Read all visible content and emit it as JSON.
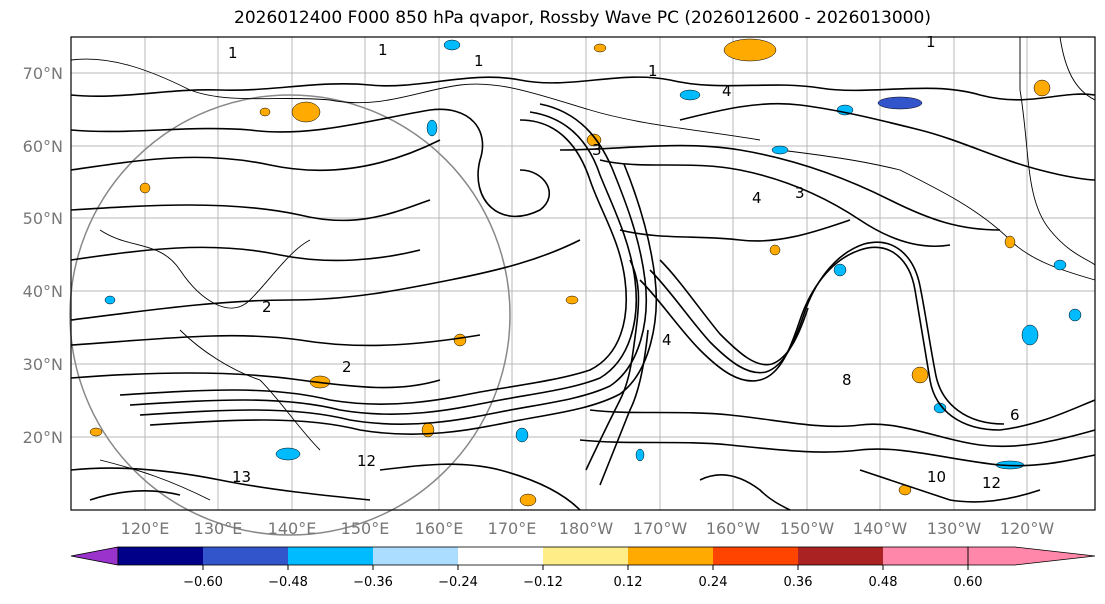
{
  "title": "2026012400 F000 850 hPa qvapor, Rossby Wave PC (2026012600 - 2026013000)",
  "latitude_labels": [
    "70°N",
    "60°N",
    "50°N",
    "40°N",
    "30°N",
    "20°N"
  ],
  "longitude_labels": [
    "120°E",
    "130°E",
    "140°E",
    "150°E",
    "160°E",
    "170°E",
    "180°W",
    "170°W",
    "160°W",
    "150°W",
    "140°W",
    "130°W",
    "120°W"
  ],
  "colorbar": {
    "colors": [
      "#9933cc",
      "#000088",
      "#3355cc",
      "#00bbff",
      "#aaddff",
      "#ffffff",
      "#ffee88",
      "#ffaa00",
      "#ff4400",
      "#aa2222",
      "#ff88aa"
    ],
    "tick_labels": [
      "−0.60",
      "−0.48",
      "−0.36",
      "−0.24",
      "−0.12",
      "0.12",
      "0.24",
      "0.36",
      "0.48",
      "0.60"
    ]
  },
  "contour_labels": [
    "1",
    "1",
    "1",
    "1",
    "1",
    "2",
    "2",
    "4",
    "4",
    "3",
    "3",
    "4",
    "12",
    "13",
    "10",
    "8",
    "6",
    "12"
  ]
}
